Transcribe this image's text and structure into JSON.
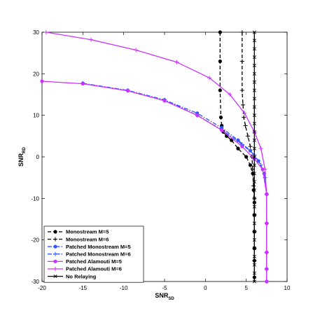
{
  "chart_data": {
    "type": "line",
    "title": "",
    "xlabel": {
      "main": "SNR",
      "sub": "SD"
    },
    "ylabel": {
      "main": "SNR",
      "sub": "RD"
    },
    "xlim": [
      -20,
      10
    ],
    "ylim": [
      -30,
      30
    ],
    "xticks": [
      "-20",
      "-15",
      "-10",
      "-5",
      "0",
      "5",
      "10"
    ],
    "yticks": [
      "-30",
      "-20",
      "-10",
      "0",
      "10",
      "20",
      "30"
    ],
    "grid": false,
    "legend_position": "bottom-left",
    "series": [
      {
        "name": "Monostream M=5",
        "color": "#000000",
        "dash": "dashed",
        "marker": "dot",
        "x": [
          1.8,
          1.8,
          1.8,
          1.9,
          2.0,
          2.2,
          2.6,
          3.2,
          4.0,
          5.0,
          5.5,
          5.8,
          5.9,
          6.0,
          6.0,
          6.0,
          6.0,
          6.0,
          6.0
        ],
        "y": [
          30,
          23,
          16,
          9.5,
          7.5,
          6.0,
          5.0,
          4.0,
          2.0,
          0,
          -2,
          -4,
          -8,
          -11,
          -14,
          -18,
          -22,
          -25,
          -29
        ]
      },
      {
        "name": "Monostream M=6",
        "color": "#000000",
        "dash": "dashed",
        "marker": "plus",
        "x": [
          4.5,
          4.5,
          4.5,
          4.6,
          4.7,
          4.9,
          5.2,
          5.5,
          5.7,
          5.8,
          5.9,
          6.0,
          6.0,
          6.0,
          6.0,
          6.0
        ],
        "y": [
          30,
          23,
          16,
          12.5,
          9.5,
          7.5,
          5.0,
          2.5,
          0,
          -3,
          -7,
          -10,
          -14,
          -18,
          -22,
          -25
        ]
      },
      {
        "name": "Patched Monostream M=5",
        "color": "#3355ff",
        "dash": "dashdot",
        "marker": "dot",
        "x": [
          -15,
          -9.5,
          -5,
          -1,
          2,
          4,
          5.5,
          6.5,
          7.2,
          7.5,
          7.5,
          7.5,
          7.5,
          7.5
        ],
        "y": [
          17.7,
          16,
          13.7,
          10.5,
          7.0,
          4.0,
          1.5,
          -1,
          -4,
          -9,
          -16,
          -23,
          -27,
          -30
        ]
      },
      {
        "name": "Patched Monostream M=6",
        "color": "#3355ff",
        "dash": "dashdot",
        "marker": "plus",
        "x": [
          -15,
          -9.5,
          -5,
          -1,
          2,
          4.5,
          6.0,
          6.8,
          7.3,
          7.5,
          7.5,
          7.5,
          7.5
        ],
        "y": [
          17.7,
          16,
          13.7,
          10.0,
          6.5,
          3.0,
          0.5,
          -2,
          -5,
          -9,
          -16,
          -23,
          -30
        ]
      },
      {
        "name": "Patched Alamouti M=5",
        "color": "#cc33ff",
        "dash": "solid",
        "marker": "dot",
        "x": [
          -20,
          -15,
          -9.5,
          -5,
          -1,
          2,
          4.5,
          6.0,
          7.0,
          7.5,
          7.5,
          7.5,
          7.5,
          7.5
        ],
        "y": [
          18.2,
          17.6,
          15.9,
          13.5,
          10.0,
          6.4,
          2.5,
          -0.5,
          -3.0,
          -9,
          -16,
          -23,
          -27,
          -30
        ]
      },
      {
        "name": "Patched Alamouti M=6",
        "color": "#cc33ff",
        "dash": "solid",
        "marker": "plus",
        "x": [
          -19.5,
          -14,
          -8.5,
          -3.5,
          0.5,
          3.0,
          4.8,
          6.0,
          6.8,
          7.3,
          7.5,
          7.5,
          7.5,
          7.5,
          7.5
        ],
        "y": [
          30,
          28.2,
          25.7,
          22.8,
          19.0,
          15.0,
          10.5,
          6.0,
          2.0,
          -3.0,
          -9,
          -16,
          -23,
          -27,
          -30
        ]
      },
      {
        "name": "No Relaying",
        "color": "#000000",
        "dash": "solid",
        "marker": "x",
        "x": [
          6,
          6,
          6,
          6,
          6,
          6,
          6,
          6,
          6,
          6,
          6,
          6,
          6,
          6,
          6,
          6,
          6,
          6,
          6,
          6,
          6,
          6,
          6,
          6,
          6,
          6,
          6,
          6,
          6,
          6,
          6
        ],
        "y": [
          30,
          28,
          26,
          24,
          22,
          20,
          18,
          16,
          14,
          12,
          10,
          8,
          6,
          4,
          2,
          0,
          -2,
          -4,
          -6,
          -8,
          -10,
          -12,
          -14,
          -16,
          -18,
          -20,
          -22,
          -24,
          -26,
          -28,
          -30
        ]
      }
    ]
  }
}
